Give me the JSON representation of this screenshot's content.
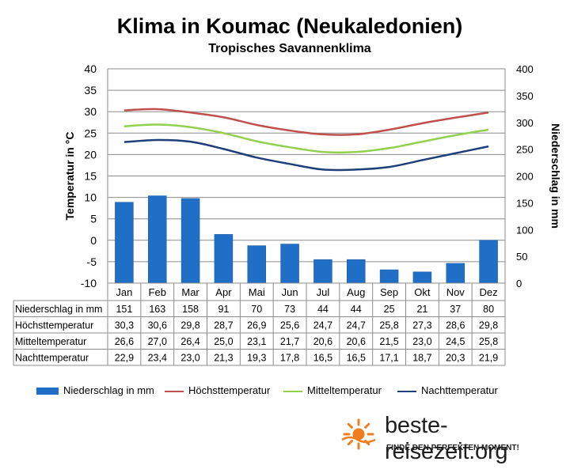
{
  "chart_data": {
    "type": "climate-diagram",
    "title": "Klima in Koumac (Neukaledonien)",
    "subtitle": "Tropisches Savannenklima",
    "categories": [
      "Jan",
      "Feb",
      "Mar",
      "Apr",
      "Mai",
      "Jun",
      "Jul",
      "Aug",
      "Sep",
      "Okt",
      "Nov",
      "Dez"
    ],
    "left_axis": {
      "label": "Temperatur in °C",
      "min": -10,
      "max": 40,
      "ticks": [
        40,
        35,
        30,
        25,
        20,
        15,
        10,
        5,
        0,
        -5,
        -10
      ]
    },
    "right_axis": {
      "label": "Niederschlag in mm",
      "min": 0,
      "max": 400,
      "ticks": [
        400,
        350,
        300,
        250,
        200,
        150,
        100,
        50,
        0
      ]
    },
    "grid": "horizontal",
    "legend_position": "bottom",
    "series": [
      {
        "name": "Niederschlag in mm",
        "type": "bar",
        "axis": "right",
        "color": "#1f6fc6",
        "values": [
          151,
          163,
          158,
          91,
          70,
          73,
          44,
          44,
          25,
          21,
          37,
          80
        ]
      },
      {
        "name": "Höchsttemperatur",
        "type": "line",
        "axis": "left",
        "color": "#c0504d",
        "values": [
          30.3,
          30.6,
          29.8,
          28.7,
          26.9,
          25.6,
          24.7,
          24.7,
          25.8,
          27.3,
          28.6,
          29.8
        ]
      },
      {
        "name": "Mitteltemperatur",
        "type": "line",
        "axis": "left",
        "color": "#92d050",
        "values": [
          26.6,
          27.0,
          26.4,
          25.0,
          23.1,
          21.7,
          20.6,
          20.6,
          21.5,
          23.0,
          24.5,
          25.8
        ]
      },
      {
        "name": "Nachttemperatur",
        "type": "line",
        "axis": "left",
        "color": "#1f3f7a",
        "values": [
          22.9,
          23.4,
          23.0,
          21.3,
          19.3,
          17.8,
          16.5,
          16.5,
          17.1,
          18.7,
          20.3,
          21.9
        ]
      }
    ],
    "table": {
      "rows": [
        {
          "label": "Niederschlag in mm",
          "values": [
            "151",
            "163",
            "158",
            "91",
            "70",
            "73",
            "44",
            "44",
            "25",
            "21",
            "37",
            "80"
          ]
        },
        {
          "label": "Höchsttemperatur",
          "values": [
            "30,3",
            "30,6",
            "29,8",
            "28,7",
            "26,9",
            "25,6",
            "24,7",
            "24,7",
            "25,8",
            "27,3",
            "28,6",
            "29,8"
          ]
        },
        {
          "label": "Mitteltemperatur",
          "values": [
            "26,6",
            "27,0",
            "26,4",
            "25,0",
            "23,1",
            "21,7",
            "20,6",
            "20,6",
            "21,5",
            "23,0",
            "24,5",
            "25,8"
          ]
        },
        {
          "label": "Nachttemperatur",
          "values": [
            "22,9",
            "23,4",
            "23,0",
            "21,3",
            "19,3",
            "17,8",
            "16,5",
            "16,5",
            "17,1",
            "18,7",
            "20,3",
            "21,9"
          ]
        }
      ]
    }
  },
  "legend": {
    "items": [
      {
        "label": "Niederschlag in mm",
        "color": "#1f6fc6",
        "kind": "bar"
      },
      {
        "label": "Höchsttemperatur",
        "color": "#c0504d",
        "kind": "line"
      },
      {
        "label": "Mitteltemperatur",
        "color": "#92d050",
        "kind": "line"
      },
      {
        "label": "Nachttemperatur",
        "color": "#1f3f7a",
        "kind": "line"
      }
    ]
  },
  "branding": {
    "name": "beste-reisezeit.org",
    "slogan": "FINDE DEN PERFEKTEN MOMENT!",
    "icon": "sun-icon",
    "icon_color": "#f07d1e"
  }
}
